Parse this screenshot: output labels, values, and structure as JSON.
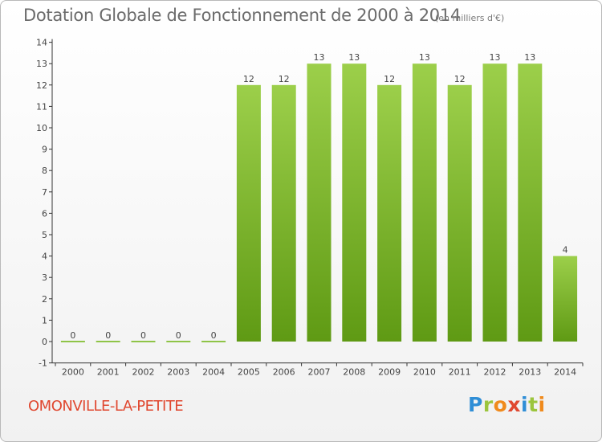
{
  "title": "Dotation Globale de Fonctionnement de 2000 à 2014",
  "unit_note": "(en milliers d'€)",
  "commune": "OMONVILLE-LA-PETITE",
  "logo": {
    "letters": [
      "P",
      "r",
      "o",
      "x",
      "i",
      "t",
      "i"
    ],
    "colors": [
      "#2f8ed6",
      "#9bc53d",
      "#f08a1c",
      "#e0472f",
      "#2f8ed6",
      "#9bc53d",
      "#f08a1c"
    ]
  },
  "colors": {
    "bar_light": "#9ccf4a",
    "bar_dark": "#5f9a14",
    "zero_bar": "#8fc447",
    "axis": "#333333",
    "text": "#444444"
  },
  "chart_data": {
    "type": "bar",
    "categories": [
      "2000",
      "2001",
      "2002",
      "2003",
      "2004",
      "2005",
      "2006",
      "2007",
      "2008",
      "2009",
      "2010",
      "2011",
      "2012",
      "2013",
      "2014"
    ],
    "values": [
      0,
      0,
      0,
      0,
      0,
      12,
      12,
      13,
      13,
      12,
      13,
      12,
      13,
      13,
      4
    ],
    "data_labels": [
      "0",
      "0",
      "0",
      "0",
      "0",
      "12",
      "12",
      "13",
      "13",
      "12",
      "13",
      "12",
      "13",
      "13",
      "4"
    ],
    "y_ticks": [
      "-1",
      "0",
      "1",
      "2",
      "3",
      "4",
      "5",
      "6",
      "7",
      "8",
      "9",
      "10",
      "11",
      "12",
      "13",
      "14"
    ],
    "ylim": [
      -1,
      14
    ],
    "grid": false
  }
}
